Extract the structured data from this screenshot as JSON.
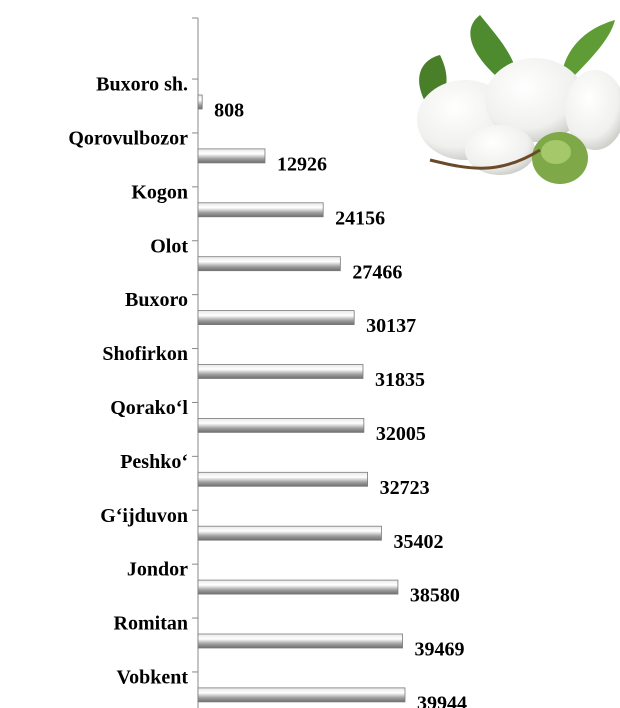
{
  "chart_data": {
    "type": "bar",
    "orientation": "horizontal",
    "categories": [
      "Buxoro sh.",
      "Qorovulbozor",
      "Kogon",
      "Olot",
      "Buxoro",
      "Shofirkon",
      "Qorako‘l",
      "Peshko‘",
      "G‘ijduvon",
      "Jondor",
      "Romitan",
      "Vobkent"
    ],
    "values": [
      808,
      12926,
      24156,
      27466,
      30137,
      31835,
      32005,
      32723,
      35402,
      38580,
      39469,
      39944
    ],
    "color": "#a6a6a6"
  }
}
